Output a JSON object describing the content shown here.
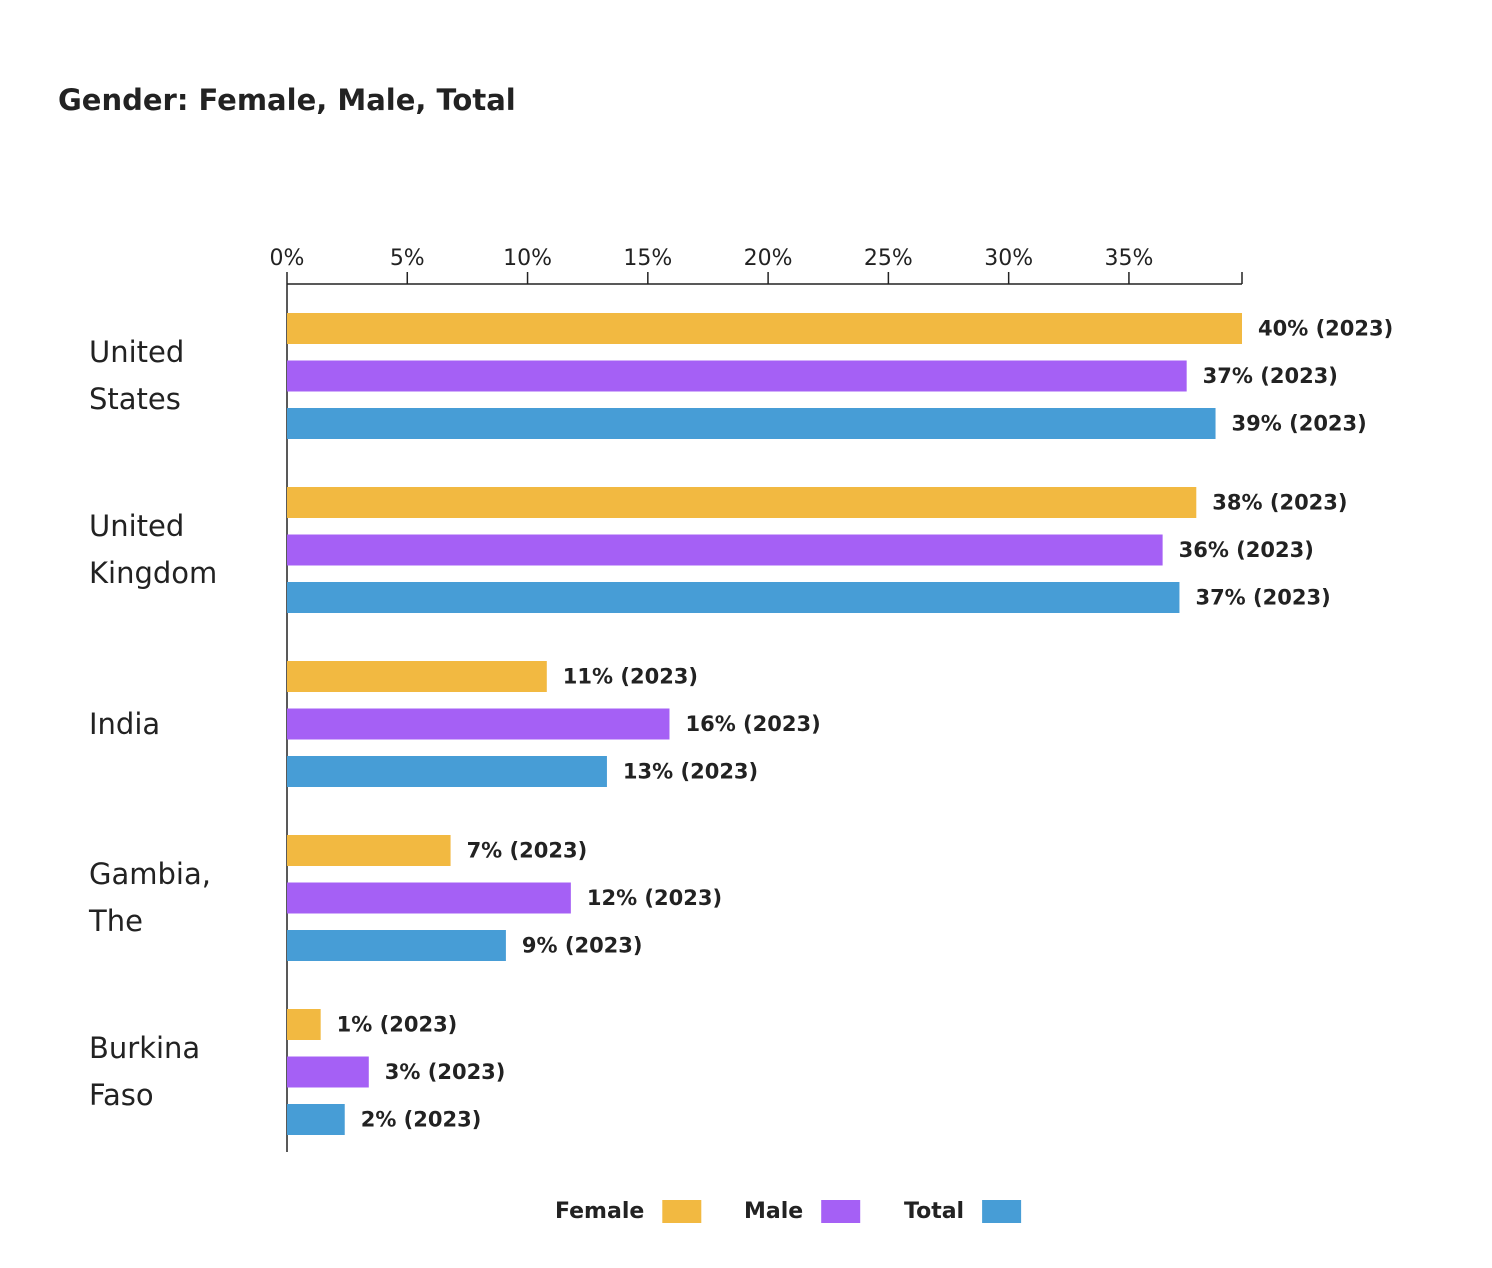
{
  "chart_data": {
    "type": "bar",
    "orientation": "horizontal",
    "title": "Gender: Female, Male, Total",
    "categories": [
      "United States",
      "United Kingdom",
      "India",
      "Gambia, The",
      "Burkina Faso"
    ],
    "series": [
      {
        "name": "Female",
        "color": "#f2b941",
        "values": [
          39.7,
          37.8,
          10.8,
          6.8,
          1.4
        ],
        "value_labels": [
          "40% (2023)",
          "38% (2023)",
          "11% (2023)",
          "7% (2023)",
          "1% (2023)"
        ]
      },
      {
        "name": "Male",
        "color": "#a560f5",
        "values": [
          37.4,
          36.4,
          15.9,
          11.8,
          3.4
        ],
        "value_labels": [
          "37% (2023)",
          "36% (2023)",
          "16% (2023)",
          "12% (2023)",
          "3% (2023)"
        ]
      },
      {
        "name": "Total",
        "color": "#479dd6",
        "values": [
          38.6,
          37.1,
          13.3,
          9.1,
          2.4
        ],
        "value_labels": [
          "39% (2023)",
          "37% (2023)",
          "13% (2023)",
          "9% (2023)",
          "2% (2023)"
        ]
      }
    ],
    "xlim": [
      0,
      39.7
    ],
    "xticks": [
      {
        "value": 0,
        "label": "0%"
      },
      {
        "value": 5,
        "label": "5%"
      },
      {
        "value": 10,
        "label": "10%"
      },
      {
        "value": 15,
        "label": "15%"
      },
      {
        "value": 20,
        "label": "20%"
      },
      {
        "value": 25,
        "label": "25%"
      },
      {
        "value": 30,
        "label": "30%"
      },
      {
        "value": 35,
        "label": "35%"
      }
    ],
    "legend": "bottom"
  }
}
